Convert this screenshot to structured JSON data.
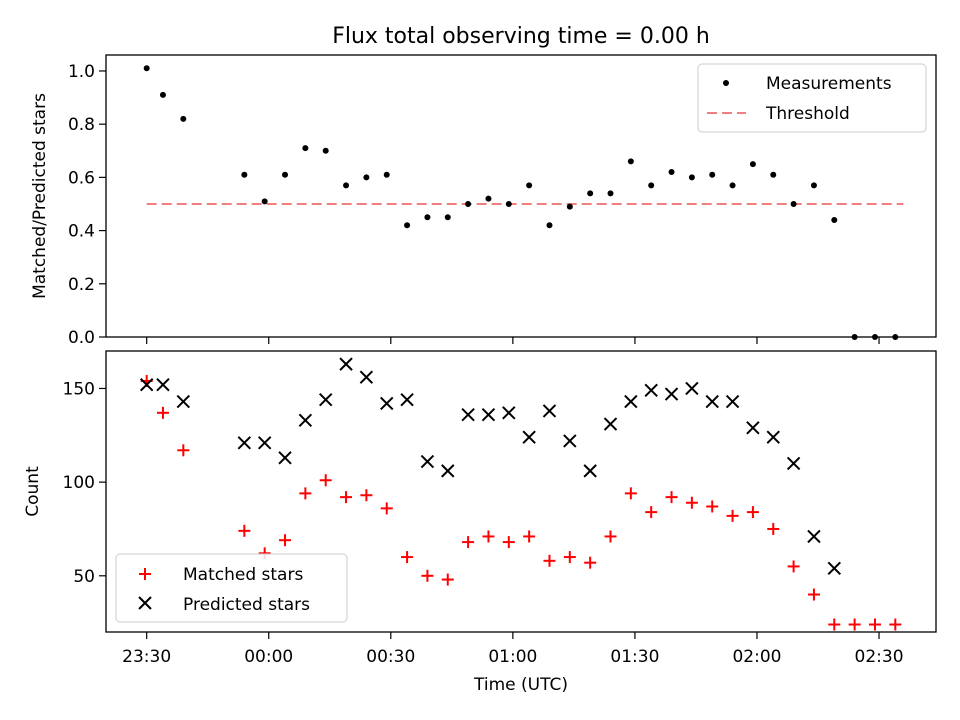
{
  "title": "Flux total observing time = 0.00 h",
  "colors": {
    "measurement": "#000000",
    "threshold": "#f08080",
    "matched": "#ff0000",
    "predicted": "#000000"
  },
  "chart_data": [
    {
      "type": "scatter",
      "ylabel": "Matched/Predicted stars",
      "xlabel": "",
      "ylim": [
        0,
        1.06
      ],
      "yticks": [
        "0.0",
        "0.2",
        "0.4",
        "0.6",
        "0.8",
        "1.0"
      ],
      "legend_position": "top-right",
      "threshold": {
        "name": "Threshold",
        "value": 0.5,
        "x_start": "23:30",
        "x_end": "02:36"
      },
      "series": [
        {
          "name": "Measurements",
          "x": [
            "23:30",
            "23:34",
            "23:39",
            "23:54",
            "23:59",
            "00:04",
            "00:09",
            "00:14",
            "00:19",
            "00:24",
            "00:29",
            "00:34",
            "00:39",
            "00:44",
            "00:49",
            "00:54",
            "00:59",
            "01:04",
            "01:09",
            "01:14",
            "01:19",
            "01:24",
            "01:29",
            "01:34",
            "01:39",
            "01:44",
            "01:49",
            "01:54",
            "01:59",
            "02:04",
            "02:09",
            "02:14",
            "02:19",
            "02:24",
            "02:29",
            "02:34"
          ],
          "y": [
            1.01,
            0.91,
            0.82,
            0.61,
            0.51,
            0.61,
            0.71,
            0.7,
            0.57,
            0.6,
            0.61,
            0.42,
            0.45,
            0.45,
            0.5,
            0.52,
            0.5,
            0.57,
            0.42,
            0.49,
            0.54,
            0.54,
            0.66,
            0.57,
            0.62,
            0.6,
            0.61,
            0.57,
            0.65,
            0.61,
            0.5,
            0.57,
            0.44,
            0.0,
            0.0,
            0.0
          ]
        }
      ]
    },
    {
      "type": "scatter",
      "ylabel": "Count",
      "xlabel": "Time (UTC)",
      "ylim": [
        20,
        170
      ],
      "xlim": [
        "23:20",
        "02:44"
      ],
      "yticks": [
        "50",
        "100",
        "150"
      ],
      "xticks": [
        "23:30",
        "00:00",
        "00:30",
        "01:00",
        "01:30",
        "02:00",
        "02:30"
      ],
      "legend_position": "bottom-left",
      "series": [
        {
          "name": "Matched stars",
          "marker": "plus",
          "x": [
            "23:30",
            "23:34",
            "23:39",
            "23:54",
            "23:59",
            "00:04",
            "00:09",
            "00:14",
            "00:19",
            "00:24",
            "00:29",
            "00:34",
            "00:39",
            "00:44",
            "00:49",
            "00:54",
            "00:59",
            "01:04",
            "01:09",
            "01:14",
            "01:19",
            "01:24",
            "01:29",
            "01:34",
            "01:39",
            "01:44",
            "01:49",
            "01:54",
            "01:59",
            "02:04",
            "02:09",
            "02:14",
            "02:19",
            "02:24",
            "02:29",
            "02:34"
          ],
          "y": [
            154,
            137,
            117,
            74,
            62,
            69,
            94,
            101,
            92,
            93,
            86,
            60,
            50,
            48,
            68,
            71,
            68,
            71,
            58,
            60,
            57,
            71,
            94,
            84,
            92,
            89,
            87,
            82,
            84,
            75,
            55,
            40,
            24,
            24,
            24,
            24
          ]
        },
        {
          "name": "Predicted stars",
          "marker": "x",
          "x": [
            "23:30",
            "23:34",
            "23:39",
            "23:54",
            "23:59",
            "00:04",
            "00:09",
            "00:14",
            "00:19",
            "00:24",
            "00:29",
            "00:34",
            "00:39",
            "00:44",
            "00:49",
            "00:54",
            "00:59",
            "01:04",
            "01:09",
            "01:14",
            "01:19",
            "01:24",
            "01:29",
            "01:34",
            "01:39",
            "01:44",
            "01:49",
            "01:54",
            "01:59",
            "02:04",
            "02:09",
            "02:14",
            "02:19"
          ],
          "y": [
            152,
            152,
            143,
            121,
            121,
            113,
            133,
            144,
            163,
            156,
            142,
            144,
            111,
            106,
            136,
            136,
            137,
            124,
            138,
            122,
            106,
            131,
            143,
            149,
            147,
            150,
            143,
            143,
            129,
            124,
            110,
            71,
            54
          ]
        }
      ]
    }
  ]
}
